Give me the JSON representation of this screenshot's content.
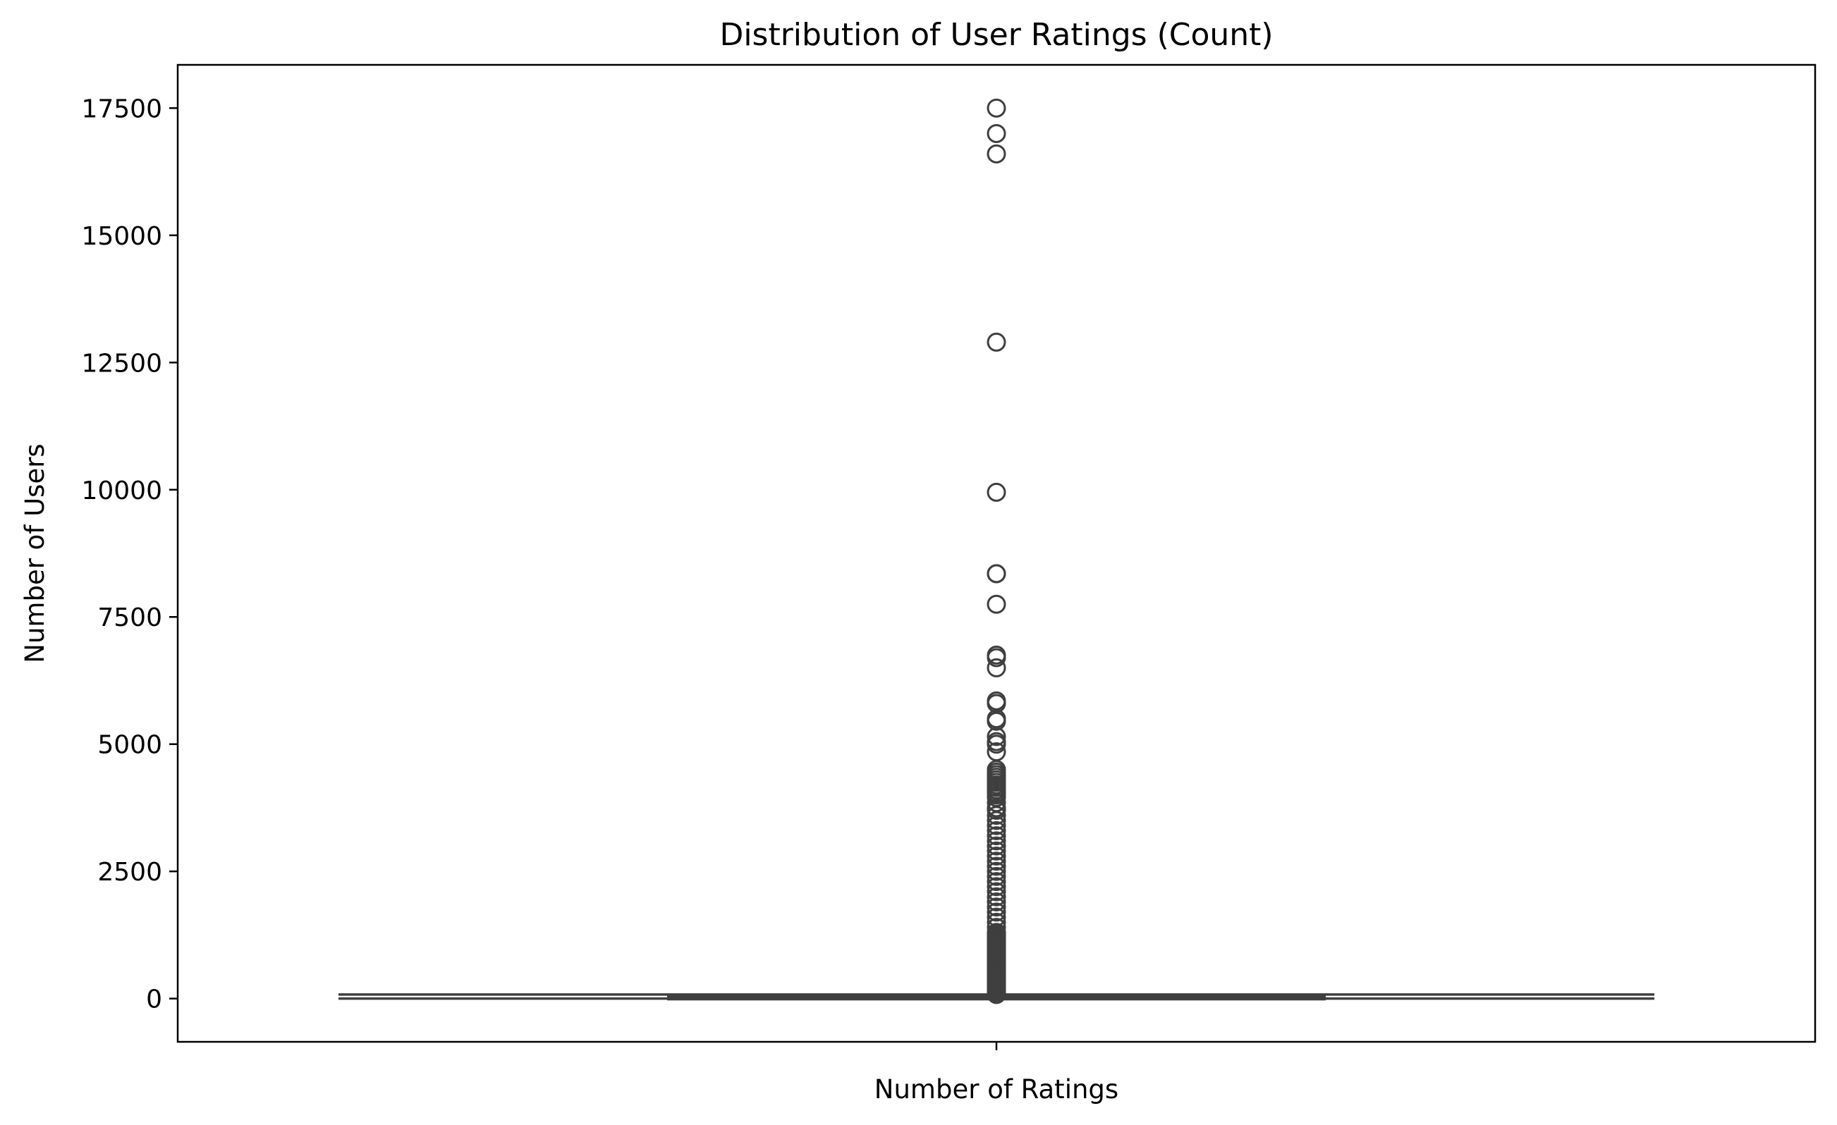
{
  "chart_data": {
    "type": "box",
    "title": "Distribution of User Ratings (Count)",
    "xlabel": "Number of Ratings",
    "ylabel": "Number of Users",
    "categories": [
      "Number of Ratings"
    ],
    "ylim": [
      -850,
      18350
    ],
    "yticks": [
      0,
      2500,
      5000,
      7500,
      10000,
      12500,
      15000,
      17500
    ],
    "ytick_labels": [
      "0",
      "2500",
      "5000",
      "7500",
      "10000",
      "12500",
      "15000",
      "17500"
    ],
    "grid": false,
    "legend": "none",
    "box": {
      "whisker_low": 1,
      "q1": 5,
      "median": 12,
      "q3": 35,
      "whisker_high": 80
    },
    "outliers": [
      17500,
      17000,
      16600,
      12900,
      9950,
      8350,
      8350,
      7750,
      6750,
      6700,
      6500,
      5850,
      5800,
      5500,
      5450,
      5150,
      5050,
      5000,
      4850,
      4500,
      4450,
      4400,
      4350,
      4300,
      4250,
      4200,
      4150,
      4100,
      4050,
      4000,
      3950,
      3850,
      3750,
      3700,
      3600,
      3500,
      3400,
      3300,
      3200,
      3100,
      3000,
      2900,
      2800,
      2700,
      2600,
      2500,
      2400,
      2300,
      2200,
      2100,
      2000,
      1900,
      1800,
      1700,
      1600,
      1500,
      1400,
      1300,
      1200,
      1100,
      1000,
      900,
      800,
      700,
      600,
      500,
      400,
      300,
      250,
      200,
      150,
      120,
      100,
      90
    ],
    "colors": {
      "box_line": "#3f3f3f",
      "axes": "#000000",
      "background": "#ffffff"
    }
  }
}
